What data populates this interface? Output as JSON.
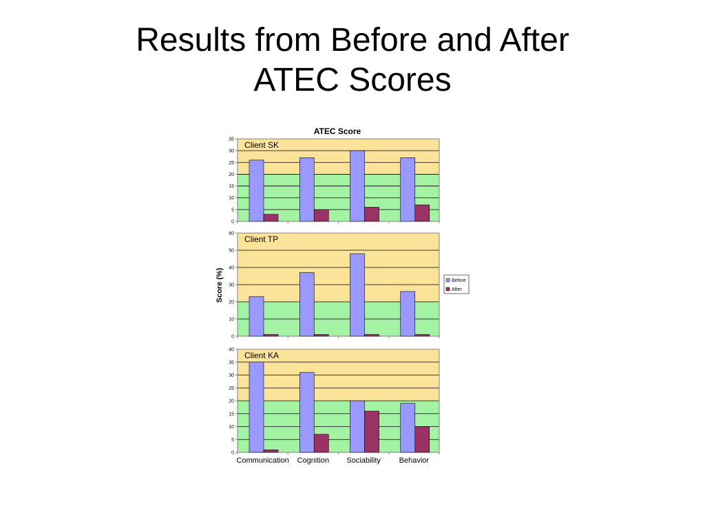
{
  "slide": {
    "title_line1": "Results from Before and After",
    "title_line2": "ATEC Scores"
  },
  "colors": {
    "before": "#9999ff",
    "after": "#993366",
    "band_high": "#fbe39a",
    "band_low": "#a4f3a4",
    "axis": "#808080",
    "gridline": "#000000"
  },
  "chart_data": {
    "type": "bar",
    "title": "ATEC Score",
    "ylabel": "Score (%)",
    "categories": [
      "Communication",
      "Cognition",
      "Sociability",
      "Behavior"
    ],
    "legend": {
      "placement": "right",
      "entries": [
        "Before",
        "After"
      ]
    },
    "grid": true,
    "panels": [
      {
        "label": "Client SK",
        "ylim": [
          0,
          35
        ],
        "yticks": [
          "0",
          "5",
          "10",
          "15",
          "20",
          "25",
          "30",
          "35"
        ],
        "band_split": 20,
        "series": [
          {
            "name": "Before",
            "values": [
              26,
              27,
              30,
              27
            ]
          },
          {
            "name": "After",
            "values": [
              3,
              5,
              6,
              7
            ]
          }
        ]
      },
      {
        "label": "Client TP",
        "ylim": [
          0,
          60
        ],
        "yticks": [
          "0",
          "10",
          "20",
          "30",
          "40",
          "50",
          "60"
        ],
        "band_split": 20,
        "series": [
          {
            "name": "Before",
            "values": [
              23,
              37,
              48,
              26
            ]
          },
          {
            "name": "After",
            "values": [
              1,
              1,
              1,
              1
            ]
          }
        ]
      },
      {
        "label": "Client KA",
        "ylim": [
          0,
          40
        ],
        "yticks": [
          "0",
          "5",
          "10",
          "15",
          "20",
          "25",
          "30",
          "35",
          "40"
        ],
        "band_split": 20,
        "series": [
          {
            "name": "Before",
            "values": [
              35,
              31,
              20,
              19
            ]
          },
          {
            "name": "After",
            "values": [
              1,
              7,
              16,
              10
            ]
          }
        ]
      }
    ]
  }
}
